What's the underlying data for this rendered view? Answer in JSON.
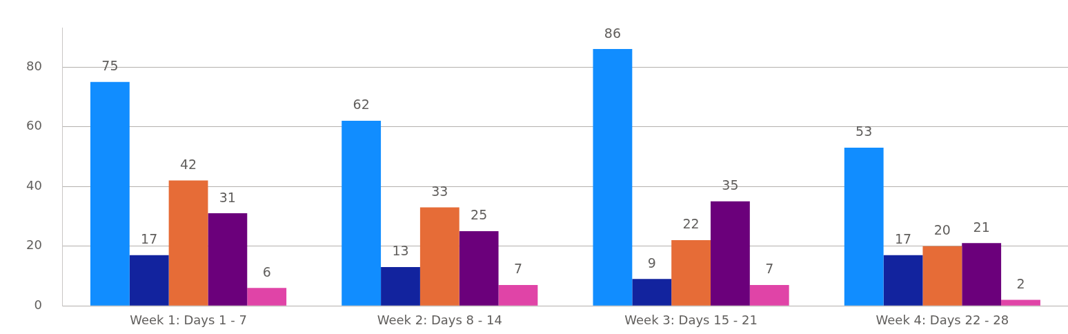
{
  "chart_data": {
    "type": "bar",
    "categories": [
      "Week 1: Days 1 - 7",
      "Week 2: Days 8 - 14",
      "Week 3: Days 15 - 21",
      "Week 4: Days 22 - 28"
    ],
    "series": [
      {
        "color": "#118dff",
        "values": [
          75,
          62,
          86,
          53
        ]
      },
      {
        "color": "#12239e",
        "values": [
          17,
          13,
          9,
          17
        ]
      },
      {
        "color": "#e66c37",
        "values": [
          42,
          33,
          22,
          20
        ]
      },
      {
        "color": "#6b007b",
        "values": [
          31,
          25,
          35,
          21
        ]
      },
      {
        "color": "#e044a7",
        "values": [
          6,
          7,
          7,
          2
        ]
      }
    ],
    "ylim": [
      0,
      93
    ],
    "yticks": [
      0,
      20,
      40,
      60,
      80
    ],
    "grid": "y",
    "legend": false,
    "data_labels": true
  }
}
